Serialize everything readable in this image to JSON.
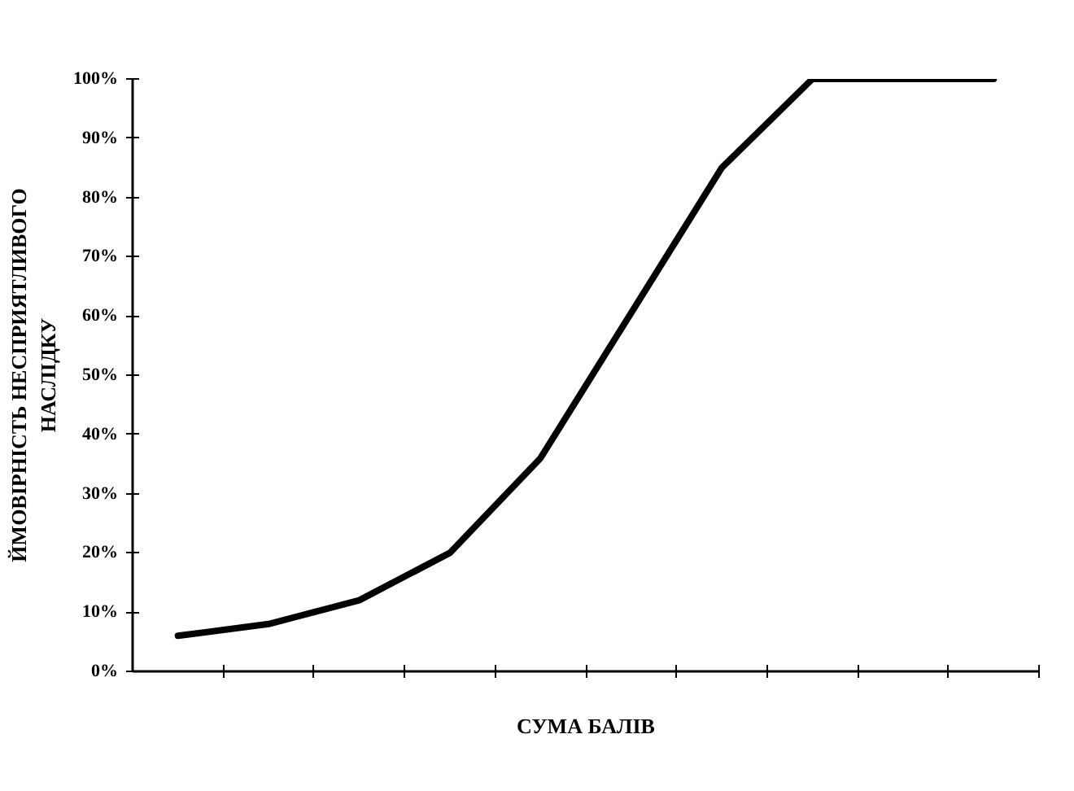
{
  "chart_data": {
    "type": "line",
    "xlabel": "СУМА БАЛІВ",
    "ylabel": "ЙМОВІРНІСТЬ НЕСПРИЯТЛИВОГО\nНАСЛІДКУ",
    "categories": [
      null,
      null,
      null,
      null,
      null,
      null,
      null,
      null,
      null,
      null
    ],
    "series": [
      {
        "color": "#000000",
        "values": [
          6,
          8,
          12,
          20,
          36,
          60.5,
          85,
          100,
          100,
          100
        ]
      }
    ],
    "ylim": [
      0,
      100
    ],
    "yticks": [
      {
        "value": 0,
        "label": "0%"
      },
      {
        "value": 10,
        "label": "10%"
      },
      {
        "value": 20,
        "label": "20%"
      },
      {
        "value": 30,
        "label": "30%"
      },
      {
        "value": 40,
        "label": "40%"
      },
      {
        "value": 50,
        "label": "50%"
      },
      {
        "value": 60,
        "label": "60%"
      },
      {
        "value": 70,
        "label": "70%"
      },
      {
        "value": 80,
        "label": "80%"
      },
      {
        "value": 90,
        "label": "90%"
      },
      {
        "value": 100,
        "label": "100%"
      }
    ],
    "grid": false,
    "marker": "none",
    "line_style": "solid",
    "tick_labels": "y"
  }
}
